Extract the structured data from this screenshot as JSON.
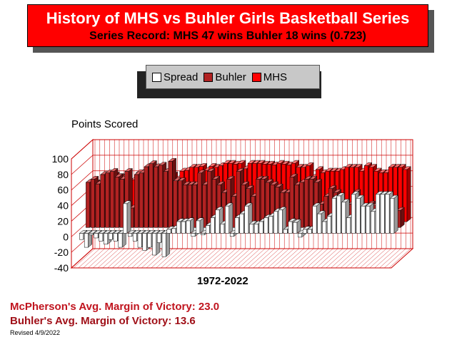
{
  "header": {
    "title": "History of MHS vs Buhler Girls Basketball Series",
    "subtitle": "Series Record:  MHS 47 wins  Buhler 18 wins (0.723)"
  },
  "legend": {
    "items": [
      {
        "label": "Spread",
        "color": "#ffffff"
      },
      {
        "label": "Buhler",
        "color": "#b22222"
      },
      {
        "label": "MHS",
        "color": "#ff0000"
      }
    ]
  },
  "chart_data": {
    "type": "bar",
    "ylabel": "Points Scored",
    "xlabel": "1972-2022",
    "ylim": [
      -40,
      100
    ],
    "yticks": [
      "100",
      "80",
      "60",
      "40",
      "20",
      "0",
      "-20",
      "-40"
    ],
    "grid": true,
    "legend_position": "top",
    "series": [
      {
        "name": "Spread",
        "values": [
          -8,
          -18,
          -2,
          -6,
          -10,
          -14,
          -8,
          -10,
          -18,
          38,
          -4,
          -10,
          -18,
          -22,
          -18,
          -28,
          -12,
          -30,
          5,
          6,
          15,
          15,
          16,
          -4,
          16,
          -2,
          10,
          20,
          30,
          12,
          35,
          -4,
          20,
          25,
          35,
          12,
          12,
          15,
          20,
          22,
          28,
          30,
          5,
          15,
          14,
          -5,
          5,
          5,
          35,
          25,
          15,
          22,
          45,
          48,
          40,
          20,
          50,
          45,
          35,
          35,
          28,
          50,
          50,
          50,
          45
        ]
      },
      {
        "name": "Buhler",
        "values": [
          58,
          62,
          56,
          68,
          70,
          72,
          65,
          62,
          72,
          25,
          68,
          70,
          78,
          82,
          78,
          80,
          72,
          85,
          60,
          60,
          55,
          55,
          55,
          70,
          55,
          72,
          62,
          55,
          45,
          62,
          40,
          72,
          55,
          50,
          40,
          62,
          62,
          58,
          55,
          52,
          45,
          45,
          65,
          55,
          58,
          62,
          62,
          58,
          30,
          40,
          50,
          45,
          25,
          22,
          30,
          45,
          22,
          25,
          30,
          28,
          35,
          20,
          20,
          20,
          22
        ]
      },
      {
        "name": "MHS",
        "values": [
          50,
          44,
          54,
          62,
          60,
          58,
          57,
          52,
          54,
          63,
          64,
          60,
          60,
          60,
          60,
          52,
          60,
          55,
          65,
          66,
          70,
          70,
          71,
          66,
          71,
          70,
          72,
          75,
          75,
          74,
          75,
          68,
          75,
          75,
          75,
          74,
          74,
          73,
          75,
          74,
          73,
          75,
          70,
          70,
          72,
          57,
          67,
          63,
          65,
          65,
          65,
          67,
          70,
          70,
          70,
          65,
          72,
          70,
          65,
          63,
          63,
          70,
          70,
          70,
          67
        ]
      }
    ]
  },
  "footer": {
    "mcp_margin": "McPherson's Avg. Margin of Victory:  23.0",
    "buhler_margin": "Buhler's Avg. Margin of Victory: 13.6",
    "revised": "Revised 4/9/2022"
  }
}
